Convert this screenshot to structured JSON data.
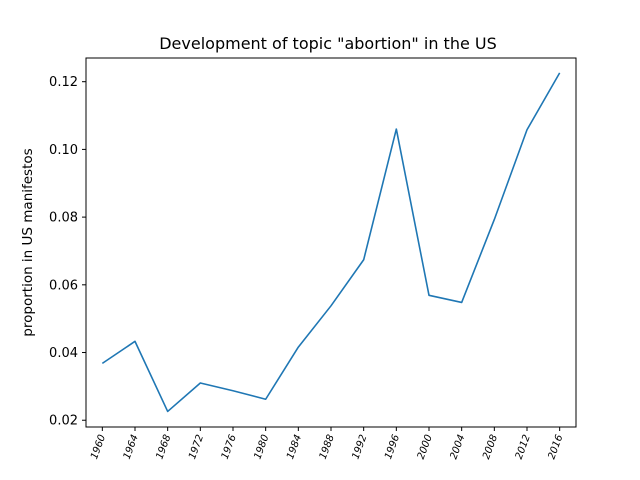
{
  "chart_data": {
    "type": "line",
    "title": "Development of topic \"abortion\" in the US",
    "xlabel": "",
    "ylabel": "proportion in US manifestos",
    "x": [
      "1960",
      "1964",
      "1968",
      "1972",
      "1976",
      "1980",
      "1984",
      "1988",
      "1992",
      "1996",
      "2000",
      "2004",
      "2008",
      "2012",
      "2016"
    ],
    "series": [
      {
        "values": [
          0.0368,
          0.0433,
          0.0226,
          0.031,
          0.0287,
          0.0262,
          0.0416,
          0.0538,
          0.0674,
          0.106,
          0.0569,
          0.0548,
          0.0793,
          0.1058,
          0.1226
        ],
        "color": "#1f77b4"
      }
    ],
    "ylim": [
      0.018,
      0.127
    ],
    "yticks": [
      0.02,
      0.04,
      0.06,
      0.08,
      0.1,
      0.12
    ],
    "ytick_labels": [
      "0.02",
      "0.04",
      "0.06",
      "0.08",
      "0.10",
      "0.12"
    ],
    "xtick_rotation": 70,
    "grid": false,
    "legend": "none"
  }
}
